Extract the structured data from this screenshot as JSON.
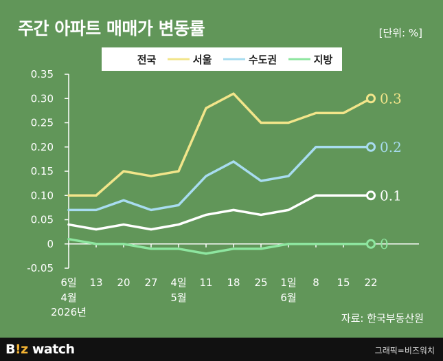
{
  "header": {
    "title": "주간 아파트 매매가 변동률",
    "unit": "[단위: %]"
  },
  "source": "자료: 한국부동산원",
  "footer": {
    "logo_prefix": "B",
    "logo_accent": "!z",
    "logo_suffix": " watch",
    "credit": "그래픽=비즈워치"
  },
  "colors": {
    "background": "#619659",
    "national": "#ffffff",
    "seoul": "#f2e58a",
    "capital": "#a8dcf0",
    "regional": "#8ee6a0"
  },
  "chart_data": {
    "type": "line",
    "title": "주간 아파트 매매가 변동률",
    "ylabel": "",
    "xlabel": "",
    "ylim": [
      -0.05,
      0.35
    ],
    "yticks": [
      -0.05,
      0,
      0.05,
      0.1,
      0.15,
      0.2,
      0.25,
      0.3,
      0.35
    ],
    "ytick_labels": [
      "-0.05",
      "0",
      "0.05",
      "0.10",
      "0.15",
      "0.20",
      "0.25",
      "0.30",
      "0.35"
    ],
    "grid": false,
    "legend_position": "top",
    "categories": [
      "6일",
      "13",
      "20",
      "27",
      "4일",
      "11",
      "18",
      "25",
      "1일",
      "8",
      "15",
      "22"
    ],
    "month_labels": [
      {
        "index": 0,
        "lines": [
          "4월",
          "2026년"
        ]
      },
      {
        "index": 4,
        "lines": [
          "5월"
        ]
      },
      {
        "index": 8,
        "lines": [
          "6월"
        ]
      }
    ],
    "series": [
      {
        "name": "전국",
        "color": "#ffffff",
        "values": [
          0.04,
          0.03,
          0.04,
          0.03,
          0.04,
          0.06,
          0.07,
          0.06,
          0.07,
          0.1,
          0.1,
          0.1
        ],
        "end_label": "0.1"
      },
      {
        "name": "서울",
        "color": "#f2e58a",
        "values": [
          0.1,
          0.1,
          0.15,
          0.14,
          0.15,
          0.28,
          0.31,
          0.25,
          0.25,
          0.27,
          0.27,
          0.3
        ],
        "end_label": "0.3"
      },
      {
        "name": "수도권",
        "color": "#a8dcf0",
        "values": [
          0.07,
          0.07,
          0.09,
          0.07,
          0.08,
          0.14,
          0.17,
          0.13,
          0.14,
          0.2,
          0.2,
          0.2
        ],
        "end_label": "0.2"
      },
      {
        "name": "지방",
        "color": "#8ee6a0",
        "values": [
          0.01,
          0.0,
          0.0,
          -0.01,
          -0.01,
          -0.02,
          -0.01,
          -0.01,
          0.0,
          0.0,
          0.0,
          0.0
        ],
        "end_label": "0"
      }
    ]
  }
}
